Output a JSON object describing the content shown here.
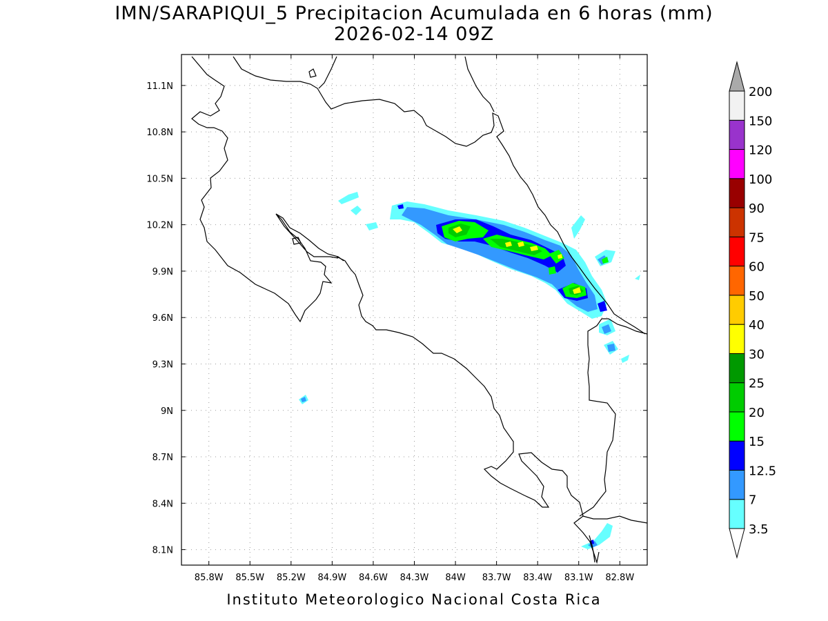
{
  "title": {
    "line1": "IMN/SARAPIQUI_5 Precipitacion Acumulada en 6 horas (mm)",
    "line2": "2026-02-14 09Z"
  },
  "footer": "Instituto Meteorologico Nacional Costa Rica",
  "map": {
    "lon_range": [
      -86.0,
      -82.6
    ],
    "lat_range": [
      8.0,
      11.3
    ],
    "lon_ticks": [
      {
        "value": -85.8,
        "label": "85.8W"
      },
      {
        "value": -85.5,
        "label": "85.5W"
      },
      {
        "value": -85.2,
        "label": "85.2W"
      },
      {
        "value": -84.9,
        "label": "84.9W"
      },
      {
        "value": -84.6,
        "label": "84.6W"
      },
      {
        "value": -84.3,
        "label": "84.3W"
      },
      {
        "value": -84.0,
        "label": "84W"
      },
      {
        "value": -83.7,
        "label": "83.7W"
      },
      {
        "value": -83.4,
        "label": "83.4W"
      },
      {
        "value": -83.1,
        "label": "83.1W"
      },
      {
        "value": -82.8,
        "label": "82.8W"
      }
    ],
    "lat_ticks": [
      {
        "value": 8.1,
        "label": "8.1N"
      },
      {
        "value": 8.4,
        "label": "8.4N"
      },
      {
        "value": 8.7,
        "label": "8.7N"
      },
      {
        "value": 9.0,
        "label": "9N"
      },
      {
        "value": 9.3,
        "label": "9.3N"
      },
      {
        "value": 9.6,
        "label": "9.6N"
      },
      {
        "value": 9.9,
        "label": "9.9N"
      },
      {
        "value": 10.2,
        "label": "10.2N"
      },
      {
        "value": 10.5,
        "label": "10.5N"
      },
      {
        "value": 10.8,
        "label": "10.8N"
      },
      {
        "value": 11.1,
        "label": "11.1N"
      }
    ],
    "grid": "dotted"
  },
  "colorbar": {
    "levels": [
      "3.5",
      "7",
      "12.5",
      "15",
      "20",
      "25",
      "30",
      "40",
      "50",
      "60",
      "75",
      "90",
      "100",
      "120",
      "150",
      "200"
    ],
    "colors": [
      "#ffffff",
      "#66ffff",
      "#3399ff",
      "#0000ff",
      "#00ff00",
      "#00cc00",
      "#009900",
      "#ffff00",
      "#ffcc00",
      "#ff6600",
      "#ff0000",
      "#cc3300",
      "#990000",
      "#ff00ff",
      "#9933cc",
      "#f2f2f2",
      "#aaaaaa"
    ]
  },
  "precip_colors": {
    "c35": "#66ffff",
    "c7": "#3399ff",
    "c125": "#0000ff",
    "c15": "#00ff00",
    "c20": "#00cc00",
    "c30": "#ffff00"
  }
}
